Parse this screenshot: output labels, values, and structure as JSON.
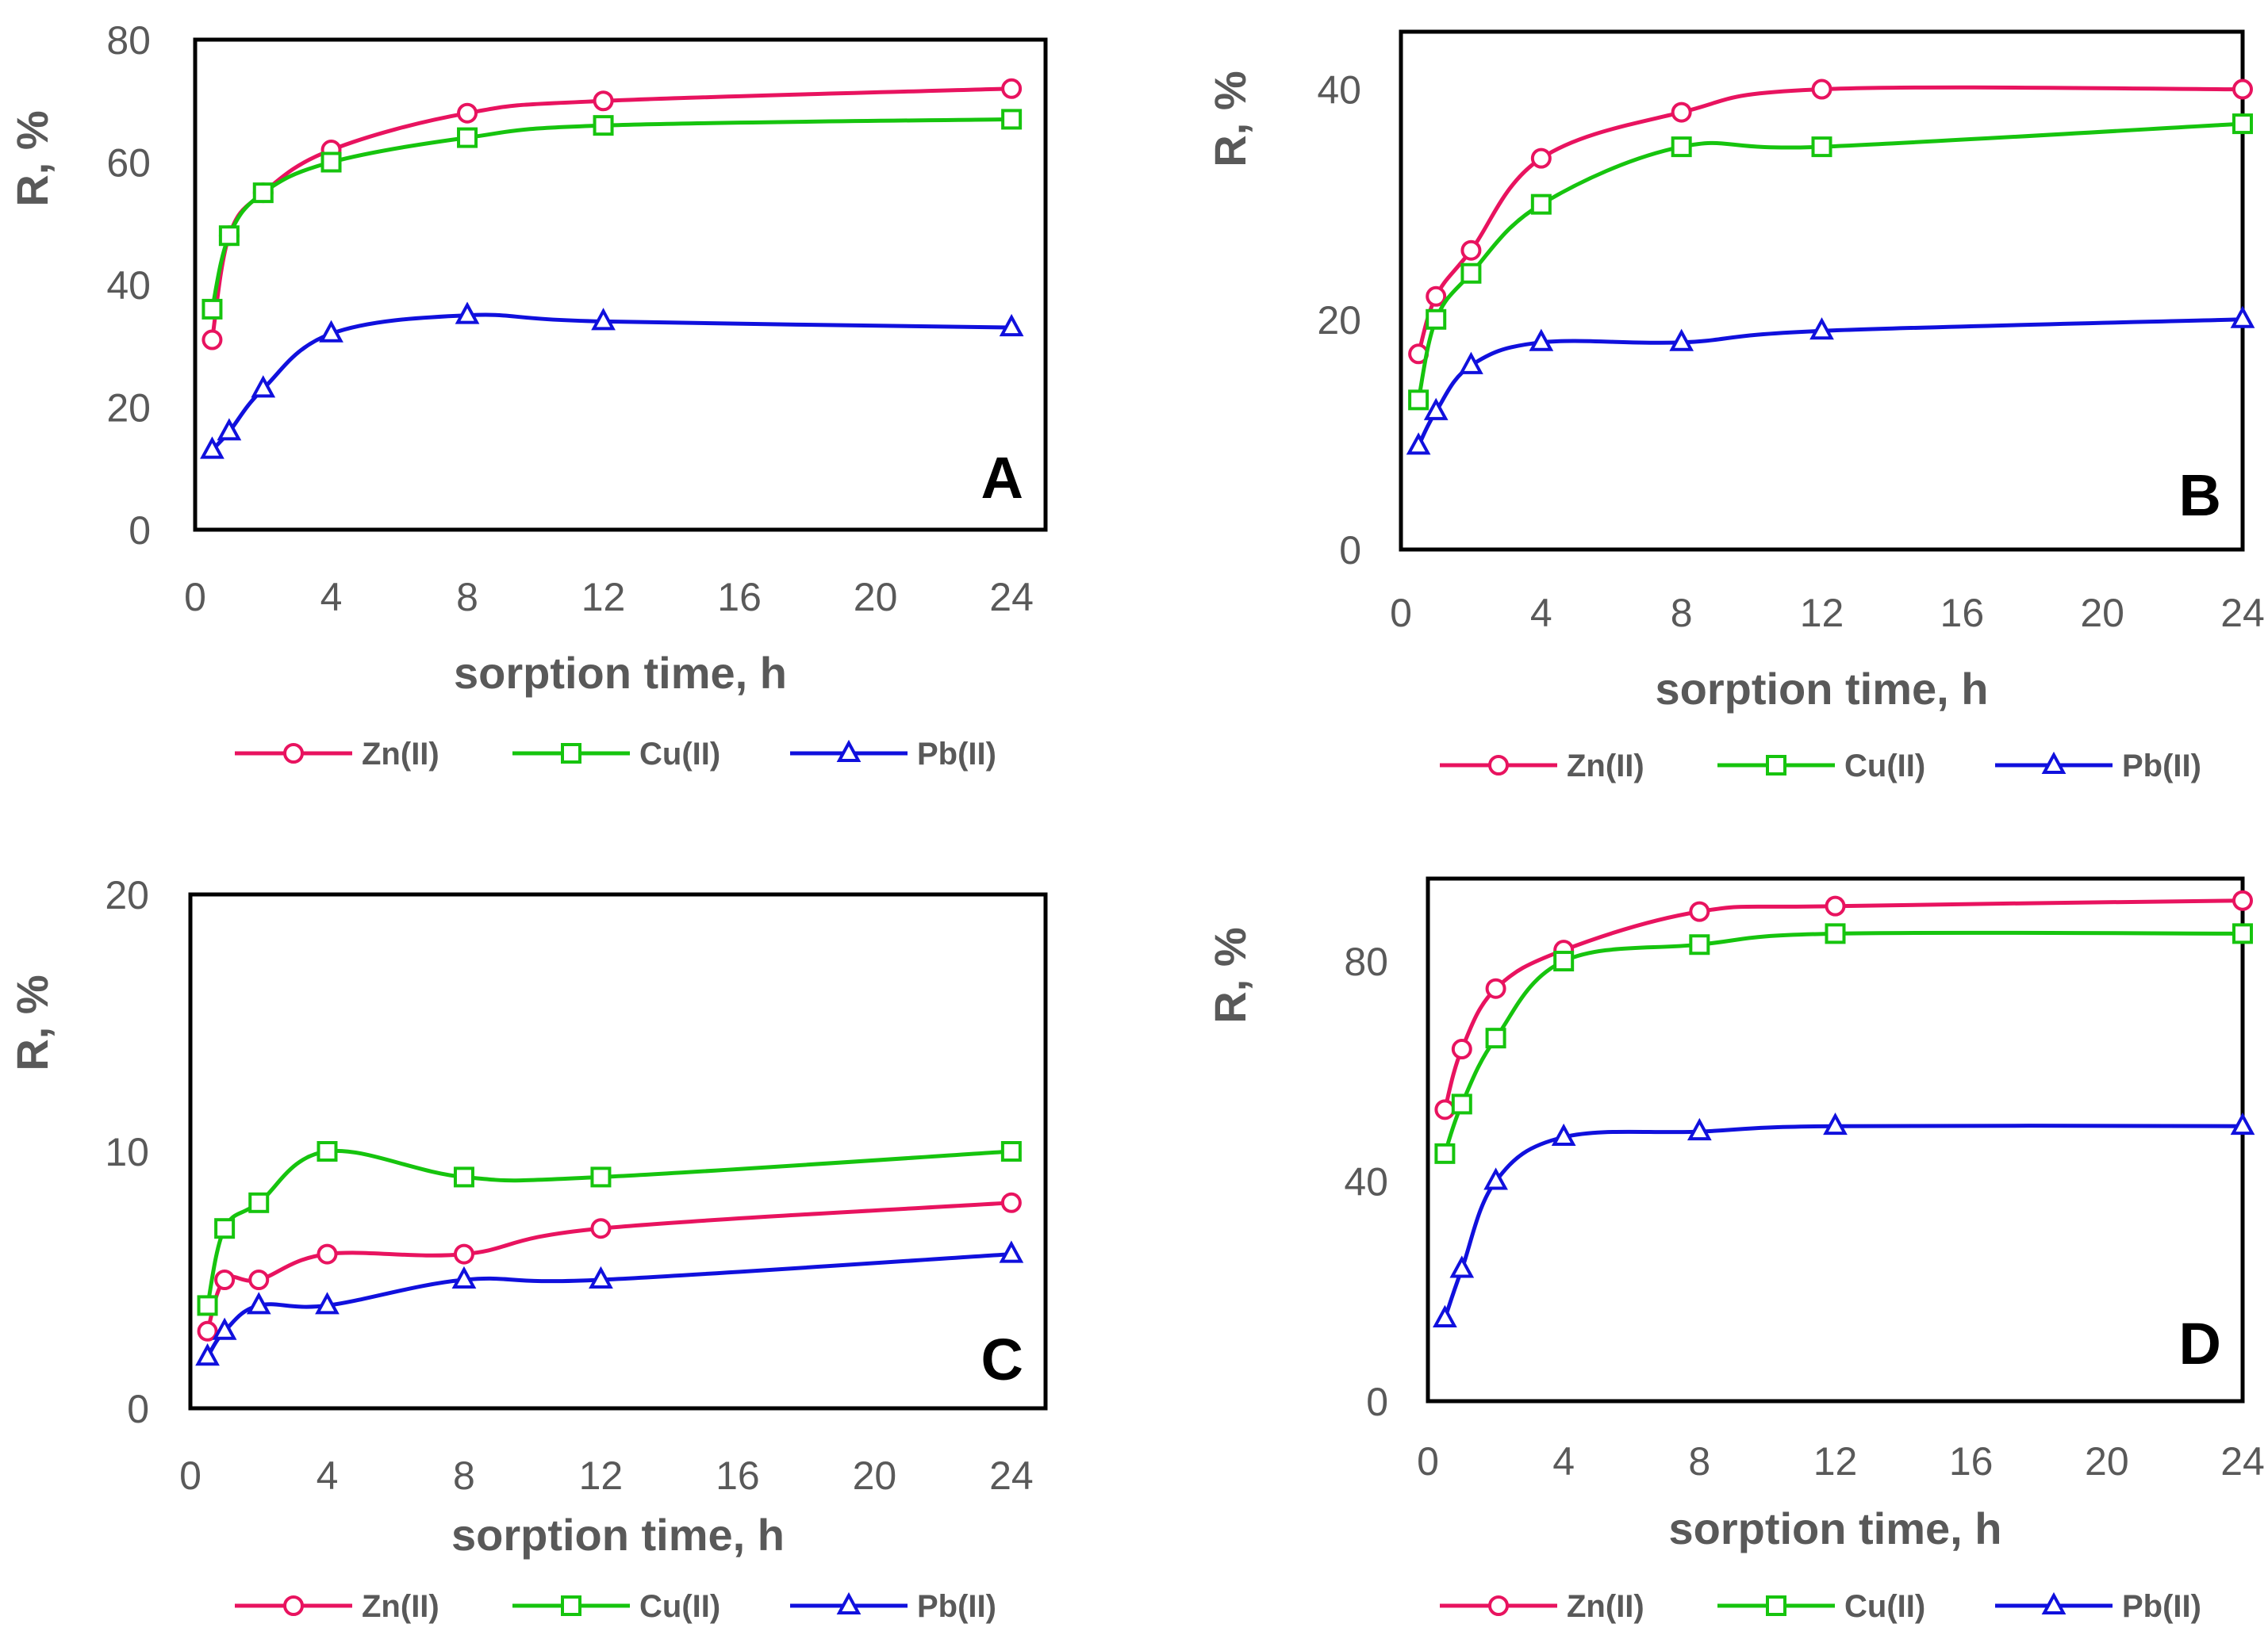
{
  "colors": {
    "zn": "#e8135f",
    "cu": "#16c40e",
    "pb": "#1010dd",
    "frame": "#000000",
    "text": "#595959"
  },
  "chart_data": [
    {
      "type": "line",
      "panel": "A",
      "x_ticks": [
        "0",
        "4",
        "8",
        "12",
        "16",
        "20",
        "24"
      ],
      "y_ticks": [
        "0",
        "20",
        "40",
        "60",
        "80"
      ],
      "xlabel": "sorption time, h",
      "ylabel": "R, %",
      "xlim": [
        0,
        25
      ],
      "ylim": [
        0,
        80
      ],
      "series": [
        {
          "name": "Zn(II)",
          "marker": "circle",
          "x": [
            0.5,
            1,
            2,
            4,
            8,
            12,
            24
          ],
          "y": [
            31,
            48,
            55,
            62,
            68,
            70,
            72
          ]
        },
        {
          "name": "Cu(II)",
          "marker": "square",
          "x": [
            0.5,
            1,
            2,
            4,
            8,
            12,
            24
          ],
          "y": [
            36,
            48,
            55,
            60,
            64,
            66,
            67
          ]
        },
        {
          "name": "Pb(II)",
          "marker": "triangle",
          "x": [
            0.5,
            1,
            2,
            4,
            8,
            12,
            24
          ],
          "y": [
            13,
            16,
            23,
            32,
            35,
            34,
            33
          ]
        }
      ]
    },
    {
      "type": "line",
      "panel": "B",
      "x_ticks": [
        "0",
        "4",
        "8",
        "12",
        "16",
        "20",
        "24"
      ],
      "y_ticks": [
        "0",
        "20",
        "40"
      ],
      "xlabel": "sorption time, h",
      "ylabel": "R, %",
      "xlim": [
        0,
        24
      ],
      "ylim": [
        0,
        45
      ],
      "series": [
        {
          "name": "Zn(II)",
          "marker": "circle",
          "x": [
            0.5,
            1,
            2,
            4,
            8,
            12,
            24
          ],
          "y": [
            17,
            22,
            26,
            34,
            38,
            40,
            40
          ]
        },
        {
          "name": "Cu(II)",
          "marker": "square",
          "x": [
            0.5,
            1,
            2,
            4,
            8,
            12,
            24
          ],
          "y": [
            13,
            20,
            24,
            30,
            35,
            35,
            37
          ]
        },
        {
          "name": "Pb(II)",
          "marker": "triangle",
          "x": [
            0.5,
            1,
            2,
            4,
            8,
            12,
            24
          ],
          "y": [
            9,
            12,
            16,
            18,
            18,
            19,
            20
          ]
        }
      ]
    },
    {
      "type": "line",
      "panel": "C",
      "x_ticks": [
        "0",
        "4",
        "8",
        "12",
        "16",
        "20",
        "24"
      ],
      "y_ticks": [
        "0",
        "10",
        "20"
      ],
      "xlabel": "sorption time, h",
      "ylabel": "R, %",
      "xlim": [
        0,
        25
      ],
      "ylim": [
        0,
        20
      ],
      "series": [
        {
          "name": "Zn(II)",
          "marker": "circle",
          "x": [
            0.5,
            1,
            2,
            4,
            8,
            12,
            24
          ],
          "y": [
            3,
            5,
            5,
            6,
            6,
            7,
            8
          ]
        },
        {
          "name": "Cu(II)",
          "marker": "square",
          "x": [
            0.5,
            1,
            2,
            4,
            8,
            12,
            24
          ],
          "y": [
            4,
            7,
            8,
            10,
            9,
            9,
            10
          ]
        },
        {
          "name": "Pb(II)",
          "marker": "triangle",
          "x": [
            0.5,
            1,
            2,
            4,
            8,
            12,
            24
          ],
          "y": [
            2,
            3,
            4,
            4,
            5,
            5,
            6
          ]
        }
      ]
    },
    {
      "type": "line",
      "panel": "D",
      "x_ticks": [
        "0",
        "4",
        "8",
        "12",
        "16",
        "20",
        "24"
      ],
      "y_ticks": [
        "0",
        "40",
        "80"
      ],
      "xlabel": "sorption time, h",
      "ylabel": "R, %",
      "xlim": [
        0,
        24
      ],
      "ylim": [
        0,
        95
      ],
      "series": [
        {
          "name": "Zn(II)",
          "marker": "circle",
          "x": [
            0.5,
            1,
            2,
            4,
            8,
            12,
            24
          ],
          "y": [
            53,
            64,
            75,
            82,
            89,
            90,
            91
          ]
        },
        {
          "name": "Cu(II)",
          "marker": "square",
          "x": [
            0.5,
            1,
            2,
            4,
            8,
            12,
            24
          ],
          "y": [
            45,
            54,
            66,
            80,
            83,
            85,
            85
          ]
        },
        {
          "name": "Pb(II)",
          "marker": "triangle",
          "x": [
            0.5,
            1,
            2,
            4,
            8,
            12,
            24
          ],
          "y": [
            15,
            24,
            40,
            48,
            49,
            50,
            50
          ]
        }
      ]
    }
  ]
}
